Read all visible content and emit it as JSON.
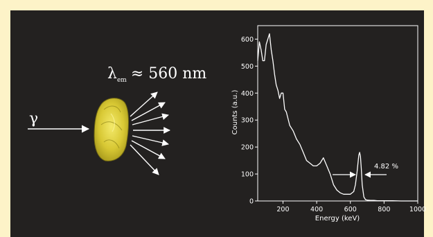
{
  "diagram": {
    "gamma_label": "γ",
    "emission_symbol": "λ",
    "emission_subscript": "em",
    "emission_value": "≈ 560 nm"
  },
  "chart_data": {
    "type": "line",
    "title": "",
    "xlabel": "Energy (keV)",
    "ylabel": "Counts (a.u.)",
    "xlim": [
      50,
      1000
    ],
    "ylim": [
      0,
      650
    ],
    "xticks": [
      200,
      400,
      600,
      800,
      1000
    ],
    "yticks": [
      0,
      100,
      200,
      300,
      400,
      500,
      600
    ],
    "grid": false,
    "annotation": "4.82 %",
    "x": [
      50,
      60,
      70,
      80,
      90,
      100,
      110,
      120,
      130,
      140,
      150,
      160,
      170,
      180,
      190,
      200,
      210,
      220,
      240,
      260,
      280,
      300,
      320,
      340,
      360,
      380,
      400,
      420,
      440,
      460,
      480,
      500,
      520,
      540,
      560,
      580,
      600,
      620,
      630,
      640,
      650,
      655,
      660,
      665,
      670,
      680,
      690,
      700,
      720,
      740,
      760,
      780,
      800,
      850,
      900,
      950,
      1000
    ],
    "values": [
      520,
      590,
      560,
      520,
      520,
      580,
      600,
      620,
      560,
      520,
      470,
      430,
      410,
      380,
      400,
      400,
      340,
      330,
      280,
      260,
      230,
      210,
      180,
      150,
      140,
      130,
      130,
      140,
      160,
      130,
      100,
      60,
      40,
      30,
      25,
      25,
      25,
      35,
      60,
      110,
      170,
      180,
      165,
      120,
      60,
      15,
      5,
      3,
      2,
      2,
      1,
      1,
      1,
      1,
      0,
      0,
      0
    ],
    "color": "#ffffff"
  }
}
